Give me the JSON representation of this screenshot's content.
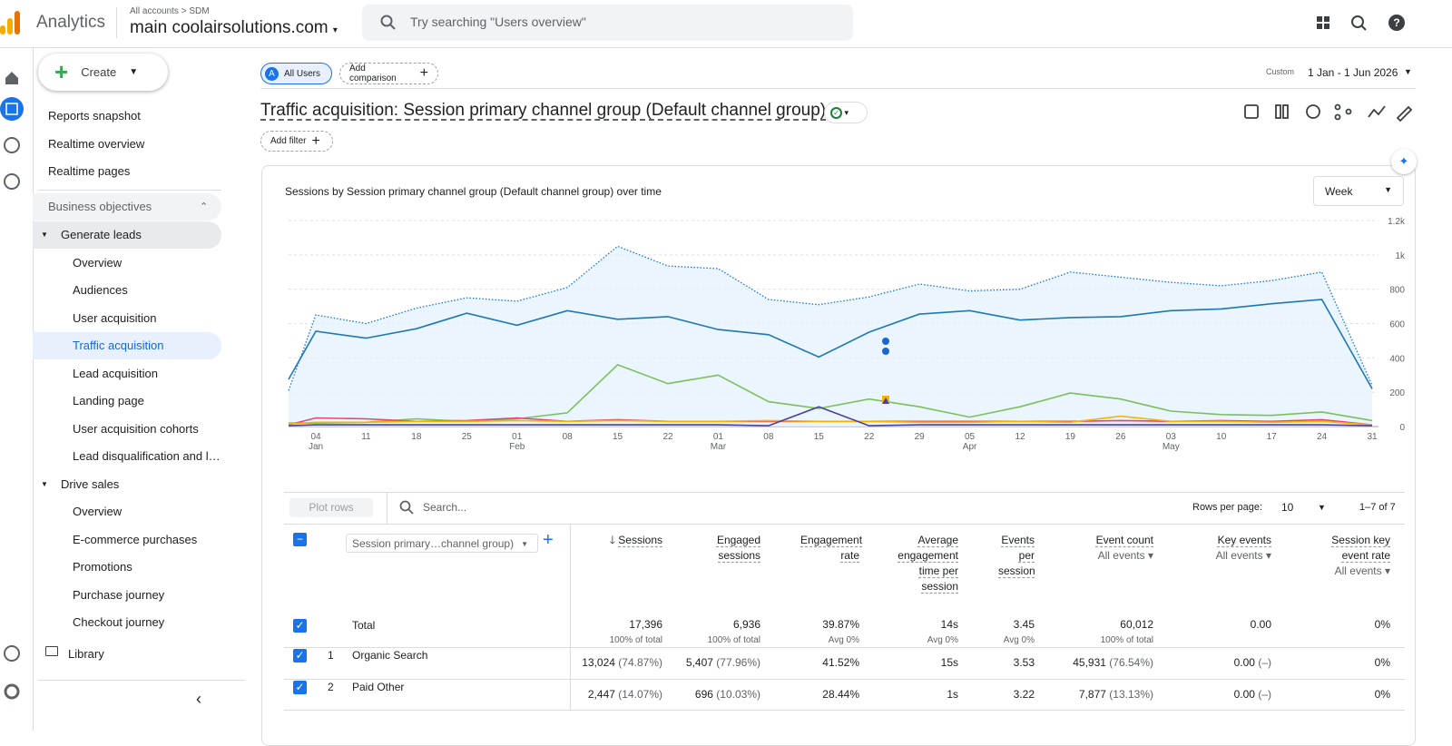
{
  "header": {
    "product": "Analytics",
    "breadcrumb": [
      "All accounts",
      "SDM"
    ],
    "property": "main coolairsolutions.com",
    "search": "Try searching \"Users overview\""
  },
  "create": "Create",
  "nav": {
    "top": [
      "Reports snapshot",
      "Realtime overview",
      "Realtime pages"
    ],
    "section": "Business objectives",
    "groups": [
      {
        "title": "Generate leads",
        "items": [
          "Overview",
          "Audiences",
          "User acquisition",
          "Traffic acquisition",
          "Lead acquisition",
          "Landing page",
          "User acquisition cohorts",
          "Lead disqualification and l…"
        ]
      },
      {
        "title": "Drive sales",
        "items": [
          "Overview",
          "E-commerce purchases",
          "Promotions",
          "Purchase journey",
          "Checkout journey"
        ]
      }
    ],
    "library": "Library"
  },
  "toolbar": {
    "segment_badge": "A",
    "segment": "All Users",
    "add_comparison": "Add comparison",
    "date_type": "Custom",
    "date_range": "1 Jan - 1 Jun 2026"
  },
  "report": {
    "title": "Traffic acquisition: Session primary channel group (Default channel group)",
    "add_filter": "Add filter"
  },
  "chart_data": {
    "type": "line",
    "title": "Sessions by Session primary channel group (Default channel group) over time",
    "interval": "Week",
    "categories": [
      null,
      "04",
      "11",
      "18",
      "25",
      "01",
      "08",
      "15",
      "22",
      "01",
      "08",
      "15",
      "22",
      "29",
      "05",
      "12",
      "19",
      "26",
      "03",
      "10",
      "17",
      "24",
      "31"
    ],
    "months": [
      null,
      "Jan",
      null,
      null,
      null,
      "Feb",
      null,
      null,
      null,
      "Mar",
      null,
      null,
      null,
      null,
      "Apr",
      null,
      null,
      null,
      "May",
      null,
      null,
      null,
      null
    ],
    "ylim": [
      0,
      1200
    ],
    "yticks": [
      0,
      200,
      400,
      600,
      800,
      {
        "value": 1000,
        "label": "1k"
      },
      {
        "value": 1200,
        "label": "1.2k"
      }
    ],
    "grid": true,
    "series": [
      {
        "color": "#1a73e8",
        "style": "dotted",
        "area": true,
        "values": [
          210,
          650,
          600,
          690,
          750,
          730,
          810,
          1050,
          935,
          920,
          740,
          710,
          755,
          830,
          790,
          800,
          900,
          870,
          840,
          820,
          850,
          900,
          240
        ]
      },
      {
        "color": "#1f77b4",
        "values": [
          275,
          555,
          515,
          570,
          660,
          590,
          675,
          625,
          640,
          565,
          535,
          405,
          550,
          655,
          675,
          620,
          635,
          640,
          675,
          685,
          715,
          740,
          220
        ]
      },
      {
        "color": "#7cc05a",
        "values": [
          20,
          20,
          25,
          45,
          30,
          45,
          80,
          360,
          250,
          300,
          145,
          105,
          160,
          115,
          55,
          115,
          195,
          160,
          90,
          70,
          65,
          85,
          35
        ]
      },
      {
        "color": "#e8437a",
        "values": [
          10,
          50,
          45,
          30,
          35,
          50,
          30,
          40,
          30,
          30,
          30,
          30,
          30,
          30,
          30,
          30,
          30,
          35,
          30,
          35,
          30,
          40,
          10
        ]
      },
      {
        "color": "#f5b400",
        "values": [
          15,
          25,
          25,
          30,
          30,
          35,
          30,
          35,
          30,
          30,
          35,
          30,
          30,
          25,
          25,
          30,
          25,
          60,
          30,
          30,
          25,
          30,
          10
        ]
      },
      {
        "color": "#4b3fa0",
        "values": [
          5,
          10,
          10,
          10,
          10,
          10,
          10,
          10,
          10,
          10,
          5,
          115,
          5,
          10,
          10,
          10,
          10,
          10,
          10,
          10,
          10,
          10,
          5
        ]
      }
    ]
  },
  "table": {
    "plot_rows": "Plot rows",
    "search": "Search...",
    "rows_per_page_label": "Rows per page:",
    "rows_per_page": "10",
    "pagination": "1–7 of 7",
    "dimension": "Session primary…channel group)",
    "columns": [
      {
        "title": "Sessions"
      },
      {
        "title": "Engaged sessions"
      },
      {
        "title": "Engagement rate"
      },
      {
        "title": "Average engagement time per session"
      },
      {
        "title": "Events per session"
      },
      {
        "title": "Event count",
        "filter": "All events"
      },
      {
        "title": "Key events",
        "filter": "All events"
      },
      {
        "title": "Session key event rate",
        "filter": "All events"
      }
    ],
    "total": {
      "label": "Total",
      "cells": [
        [
          "17,396",
          "100% of total"
        ],
        [
          "6,936",
          "100% of total"
        ],
        [
          "39.87%",
          "Avg 0%"
        ],
        [
          "14s",
          "Avg 0%"
        ],
        [
          "3.45",
          "Avg 0%"
        ],
        [
          "60,012",
          "100% of total"
        ],
        [
          "0.00"
        ],
        [
          "0%"
        ]
      ]
    },
    "rows": [
      {
        "index": "1",
        "name": "Organic Search",
        "cells": [
          [
            "13,024",
            "(74.87%)"
          ],
          [
            "5,407",
            "(77.96%)"
          ],
          [
            "41.52%"
          ],
          [
            "15s"
          ],
          [
            "3.53"
          ],
          [
            "45,931",
            "(76.54%)"
          ],
          [
            "0.00",
            "(–)"
          ],
          [
            "0%"
          ]
        ]
      },
      {
        "index": "2",
        "name": "Paid Other",
        "cells": [
          [
            "2,447",
            "(14.07%)"
          ],
          [
            "696",
            "(10.03%)"
          ],
          [
            "28.44%"
          ],
          [
            "1s"
          ],
          [
            "3.22"
          ],
          [
            "7,877",
            "(13.13%)"
          ],
          [
            "0.00",
            "(–)"
          ],
          [
            "0%"
          ]
        ]
      }
    ]
  }
}
